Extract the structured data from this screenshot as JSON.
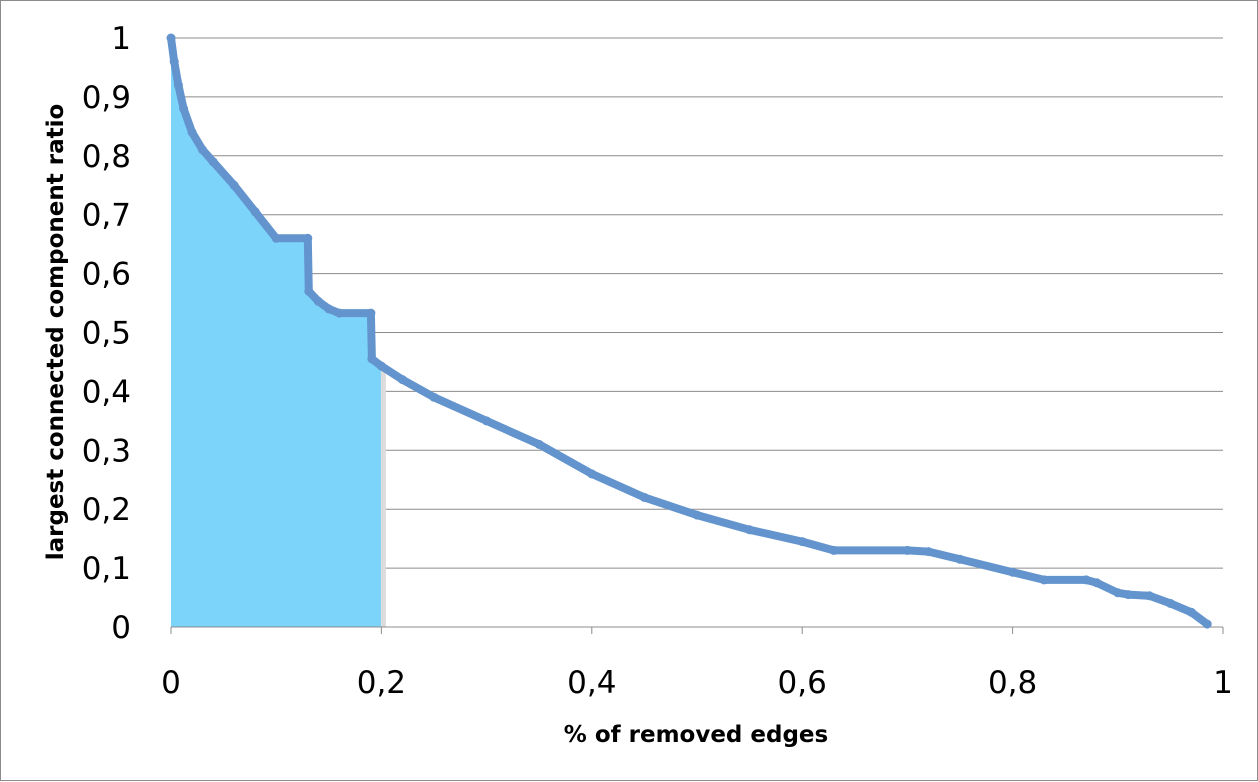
{
  "chart_data": {
    "type": "line",
    "title": "",
    "xlabel": "% of removed edges",
    "ylabel": "largest connected component ratio",
    "xlim": [
      0,
      1
    ],
    "ylim": [
      0,
      1
    ],
    "grid": "horizontal",
    "x_ticks": [
      0,
      0.2,
      0.4,
      0.6,
      0.8,
      1
    ],
    "x_tick_labels": [
      "0",
      "0,2",
      "0,4",
      "0,6",
      "0,8",
      "1"
    ],
    "y_ticks": [
      0,
      0.1,
      0.2,
      0.3,
      0.4,
      0.5,
      0.6,
      0.7,
      0.8,
      0.9,
      1
    ],
    "y_tick_labels": [
      "0",
      "0,1",
      "0,2",
      "0,3",
      "0,4",
      "0,5",
      "0,6",
      "0,7",
      "0,8",
      "0,9",
      "1"
    ],
    "shaded_region": {
      "x_from": 0,
      "x_to": 0.2,
      "color": "#7dd4fb",
      "edge_color": "#dcdcdc"
    },
    "series": [
      {
        "name": "largest connected component ratio",
        "color": "#6394cd",
        "x": [
          0,
          0.003,
          0.007,
          0.012,
          0.02,
          0.03,
          0.04,
          0.06,
          0.08,
          0.1,
          0.13,
          0.131,
          0.14,
          0.15,
          0.16,
          0.19,
          0.191,
          0.2,
          0.22,
          0.25,
          0.3,
          0.35,
          0.4,
          0.45,
          0.5,
          0.55,
          0.6,
          0.63,
          0.7,
          0.72,
          0.75,
          0.8,
          0.83,
          0.87,
          0.88,
          0.9,
          0.91,
          0.93,
          0.95,
          0.97,
          0.985
        ],
        "values": [
          1.0,
          0.96,
          0.92,
          0.88,
          0.84,
          0.81,
          0.79,
          0.75,
          0.705,
          0.66,
          0.66,
          0.57,
          0.553,
          0.54,
          0.533,
          0.533,
          0.455,
          0.443,
          0.42,
          0.39,
          0.35,
          0.31,
          0.26,
          0.22,
          0.19,
          0.165,
          0.145,
          0.13,
          0.13,
          0.128,
          0.115,
          0.093,
          0.08,
          0.08,
          0.075,
          0.058,
          0.055,
          0.053,
          0.04,
          0.025,
          0.005
        ]
      }
    ]
  }
}
